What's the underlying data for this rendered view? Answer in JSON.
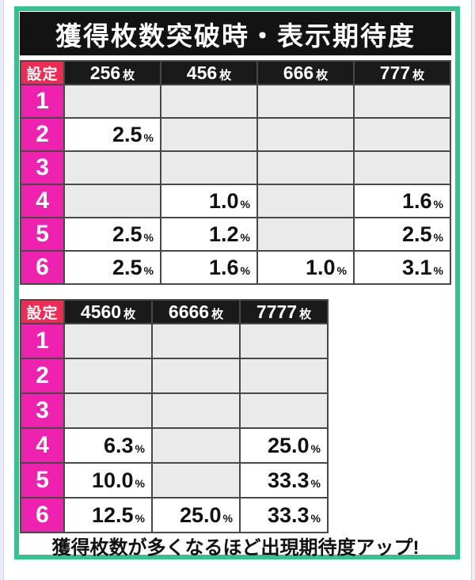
{
  "page": {
    "title": "獲得枚数突破時・表示期待度",
    "footer": "獲得枚数が多くなるほど出現期待度アップ!",
    "percent_suffix": "%"
  },
  "colors": {
    "frame_green": "#35c28e",
    "title_bar_black": "#131313",
    "column_header_black": "#1a1a1a",
    "setting_label_red": "#ee2b52",
    "setting_number_magenta": "#ee22ae",
    "empty_cell_gray": "#eaeaea",
    "grid_line": "#484848"
  },
  "chart_data": [
    {
      "type": "table",
      "setting_label": "設定",
      "columns": [
        {
          "num": "256",
          "unit": "枚"
        },
        {
          "num": "456",
          "unit": "枚"
        },
        {
          "num": "666",
          "unit": "枚"
        },
        {
          "num": "777",
          "unit": "枚"
        }
      ],
      "rows": [
        {
          "setting": "1",
          "values": [
            "",
            "",
            "",
            ""
          ]
        },
        {
          "setting": "2",
          "values": [
            "2.5",
            "",
            "",
            ""
          ]
        },
        {
          "setting": "3",
          "values": [
            "",
            "",
            "",
            ""
          ]
        },
        {
          "setting": "4",
          "values": [
            "",
            "1.0",
            "",
            "1.6"
          ]
        },
        {
          "setting": "5",
          "values": [
            "2.5",
            "1.2",
            "",
            "2.5"
          ]
        },
        {
          "setting": "6",
          "values": [
            "2.5",
            "1.6",
            "1.0",
            "3.1"
          ]
        }
      ],
      "value_unit": "%"
    },
    {
      "type": "table",
      "setting_label": "設定",
      "columns": [
        {
          "num": "4560",
          "unit": "枚"
        },
        {
          "num": "6666",
          "unit": "枚"
        },
        {
          "num": "7777",
          "unit": "枚"
        }
      ],
      "rows": [
        {
          "setting": "1",
          "values": [
            "",
            "",
            ""
          ]
        },
        {
          "setting": "2",
          "values": [
            "",
            "",
            ""
          ]
        },
        {
          "setting": "3",
          "values": [
            "",
            "",
            ""
          ]
        },
        {
          "setting": "4",
          "values": [
            "6.3",
            "",
            "25.0"
          ]
        },
        {
          "setting": "5",
          "values": [
            "10.0",
            "",
            "33.3"
          ]
        },
        {
          "setting": "6",
          "values": [
            "12.5",
            "25.0",
            "33.3"
          ]
        }
      ],
      "value_unit": "%"
    }
  ]
}
